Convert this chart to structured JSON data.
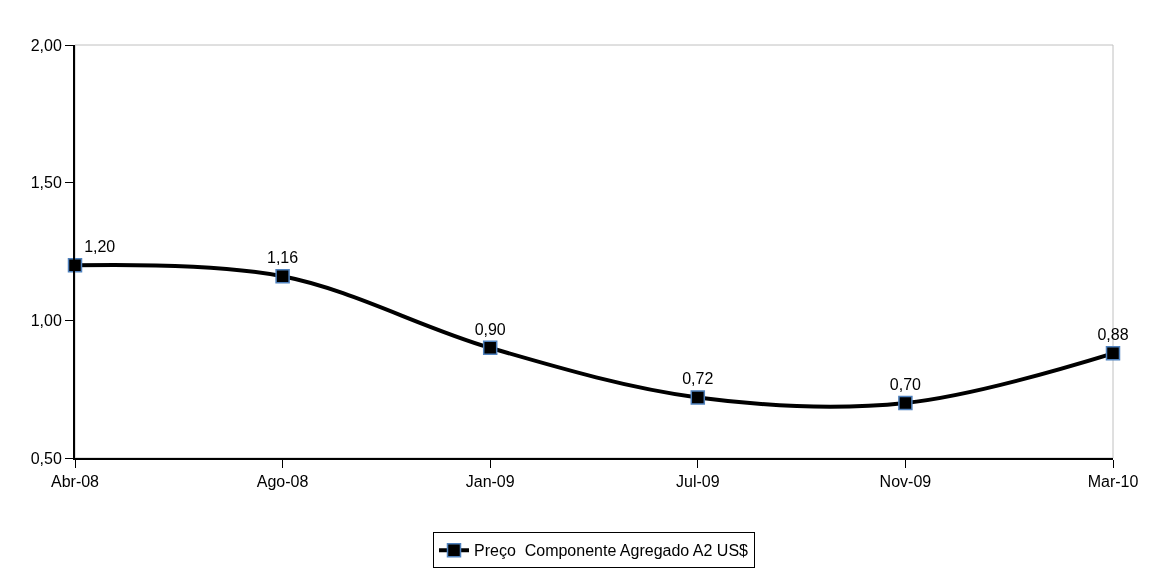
{
  "chart_data": {
    "type": "line",
    "categories": [
      "Abr-08",
      "Ago-08",
      "Jan-09",
      "Jul-09",
      "Nov-09",
      "Mar-10"
    ],
    "series": [
      {
        "name": "Preço  Componente Agregado A2 US$",
        "color": "#000000",
        "values": [
          1.2,
          1.16,
          0.9,
          0.72,
          0.7,
          0.88
        ]
      }
    ],
    "value_labels": [
      "1,20",
      "1,16",
      "0,90",
      "0,72",
      "0,70",
      "0,88"
    ],
    "ylim": [
      0.5,
      2.0
    ],
    "yticks": [
      {
        "value": 0.5,
        "label": "0,50"
      },
      {
        "value": 1.0,
        "label": "1,00"
      },
      {
        "value": 1.5,
        "label": "1,50"
      },
      {
        "value": 2.0,
        "label": "2,00"
      }
    ],
    "grid": false,
    "legend": "bottom",
    "marker": "square",
    "line_style": "solid"
  }
}
